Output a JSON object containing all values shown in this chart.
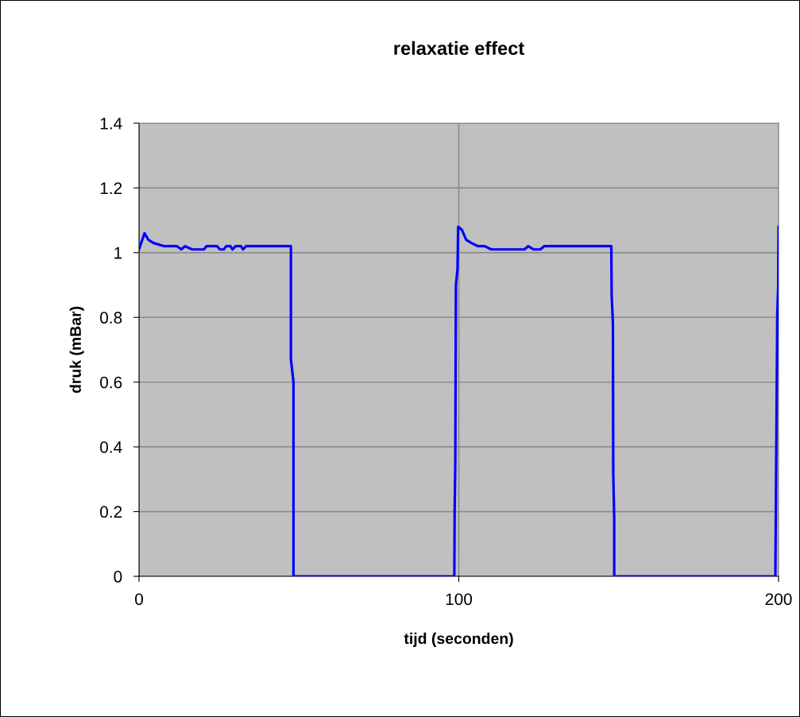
{
  "chart_data": {
    "type": "line",
    "title": "relaxatie effect",
    "xlabel": "tijd (seconden)",
    "ylabel": "druk (mBar)",
    "xlim": [
      0,
      200
    ],
    "xticks": [
      0,
      100,
      200
    ],
    "ylim": [
      0,
      1.4
    ],
    "yticks": [
      0,
      0.2,
      0.4,
      0.6,
      0.8,
      1,
      1.2,
      1.4
    ],
    "grid": true,
    "marker": "none",
    "line_style": "solid",
    "series": [
      {
        "color": "#0000ff",
        "x": [
          0,
          1.7,
          2.9,
          4.5,
          7.9,
          11.9,
          13.2,
          14.4,
          16.6,
          20.3,
          21.1,
          24.4,
          25.3,
          26.5,
          27.3,
          28.6,
          29.2,
          30.2,
          31.9,
          32.5,
          33.5,
          46.8,
          47.5,
          47.5,
          48.3,
          48.3,
          98.6,
          98.7,
          98.9,
          99.1,
          99.6,
          99.8,
          101.0,
          102.3,
          103.9,
          106.0,
          108.1,
          110.1,
          120.5,
          121.7,
          123.4,
          125.5,
          126.7,
          134.6,
          136.1,
          137.1,
          142.4,
          143.3,
          145.3,
          146.2,
          147.7,
          147.8,
          148.2,
          148.3,
          148.6,
          148.6,
          199.0,
          199.3,
          199.6,
          199.9,
          200
        ],
        "values": [
          1.01,
          1.06,
          1.04,
          1.03,
          1.02,
          1.02,
          1.01,
          1.02,
          1.01,
          1.01,
          1.02,
          1.02,
          1.01,
          1.01,
          1.02,
          1.02,
          1.01,
          1.02,
          1.02,
          1.01,
          1.02,
          1.02,
          1.02,
          0.67,
          0.6,
          0,
          0,
          0.2,
          0.35,
          0.9,
          0.95,
          1.08,
          1.07,
          1.04,
          1.03,
          1.02,
          1.02,
          1.01,
          1.01,
          1.02,
          1.01,
          1.01,
          1.02,
          1.02,
          1.02,
          1.02,
          1.02,
          1.02,
          1.02,
          1.02,
          1.02,
          0.87,
          0.78,
          0.32,
          0.18,
          0,
          0,
          0.4,
          0.81,
          0.9,
          1.08
        ]
      }
    ]
  }
}
